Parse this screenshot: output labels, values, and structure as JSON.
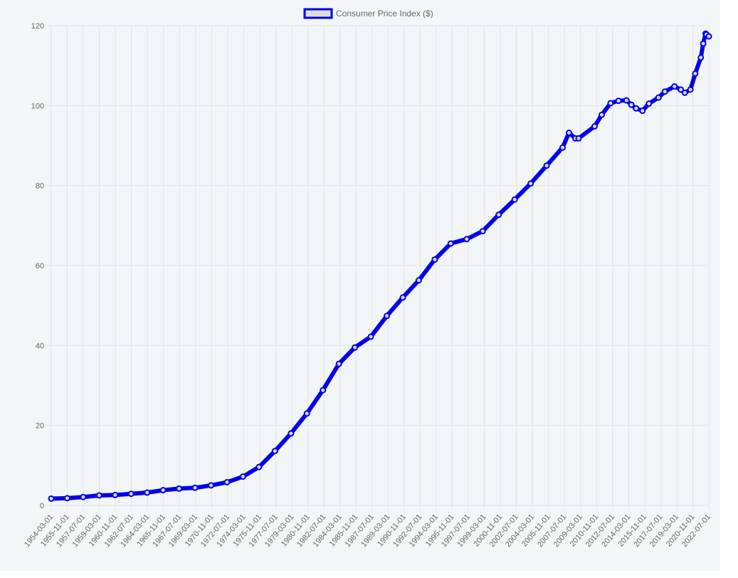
{
  "chart_data": {
    "type": "line",
    "title": "",
    "xlabel": "",
    "ylabel": "",
    "ylim": [
      0,
      120
    ],
    "yticks": [
      0,
      20,
      40,
      60,
      80,
      100,
      120
    ],
    "grid": true,
    "legend_position": "top-center",
    "x_tick_labels": [
      "1954-03-01",
      "1955-11-01",
      "1957-07-01",
      "1959-03-01",
      "1960-11-01",
      "1962-07-01",
      "1964-03-01",
      "1965-11-01",
      "1967-07-01",
      "1969-03-01",
      "1970-11-01",
      "1972-07-01",
      "1974-03-01",
      "1975-11-01",
      "1977-07-01",
      "1979-03-01",
      "1980-11-01",
      "1982-07-01",
      "1984-03-01",
      "1985-11-01",
      "1987-07-01",
      "1989-03-01",
      "1990-11-01",
      "1992-07-01",
      "1994-03-01",
      "1995-11-01",
      "1997-07-01",
      "1999-03-01",
      "2000-11-01",
      "2002-07-01",
      "2004-03-01",
      "2005-11-01",
      "2007-07-01",
      "2009-03-01",
      "2010-11-01",
      "2012-07-01",
      "2014-03-01",
      "2015-11-01",
      "2017-07-01",
      "2019-03-01",
      "2020-11-01",
      "2022-07-01"
    ],
    "series": [
      {
        "name": "Consumer Price Index ($)",
        "color": "#0000ee",
        "fill": "#dcdcdc",
        "x": [
          "1954-03-01",
          "1955-11-01",
          "1957-07-01",
          "1959-03-01",
          "1960-11-01",
          "1962-07-01",
          "1964-03-01",
          "1965-11-01",
          "1967-07-01",
          "1969-03-01",
          "1970-11-01",
          "1972-07-01",
          "1974-03-01",
          "1975-11-01",
          "1977-07-01",
          "1979-03-01",
          "1980-11-01",
          "1982-07-01",
          "1984-03-01",
          "1985-11-01",
          "1987-07-01",
          "1989-03-01",
          "1990-11-01",
          "1992-07-01",
          "1994-03-01",
          "1995-11-01",
          "1997-07-01",
          "1999-03-01",
          "2000-11-01",
          "2002-07-01",
          "2004-03-01",
          "2005-11-01",
          "2007-07-01",
          "2008-03-01",
          "2008-11-01",
          "2009-03-01",
          "2010-11-01",
          "2011-08-01",
          "2012-07-01",
          "2013-05-01",
          "2014-03-01",
          "2014-09-01",
          "2015-03-01",
          "2015-11-01",
          "2016-07-01",
          "2017-07-01",
          "2018-03-01",
          "2019-03-01",
          "2019-11-01",
          "2020-04-01",
          "2020-11-01",
          "2021-05-01",
          "2021-12-01",
          "2022-03-01",
          "2022-06-01",
          "2022-07-01",
          "2022-10-01"
        ],
        "values": [
          1.7,
          1.8,
          2.1,
          2.5,
          2.6,
          2.9,
          3.2,
          3.8,
          4.2,
          4.4,
          5.0,
          5.8,
          7.2,
          9.6,
          13.6,
          18.0,
          23.0,
          28.8,
          35.4,
          39.5,
          42.2,
          47.4,
          52.0,
          56.3,
          61.5,
          65.5,
          66.6,
          68.6,
          72.7,
          76.5,
          80.5,
          85.0,
          89.5,
          93.2,
          91.8,
          91.8,
          94.8,
          97.7,
          100.6,
          101.2,
          101.3,
          100.2,
          99.3,
          98.7,
          100.5,
          102.0,
          103.5,
          104.8,
          104.0,
          103.2,
          104.0,
          108.0,
          112.0,
          115.5,
          118.0,
          117.8,
          117.3
        ]
      }
    ]
  }
}
